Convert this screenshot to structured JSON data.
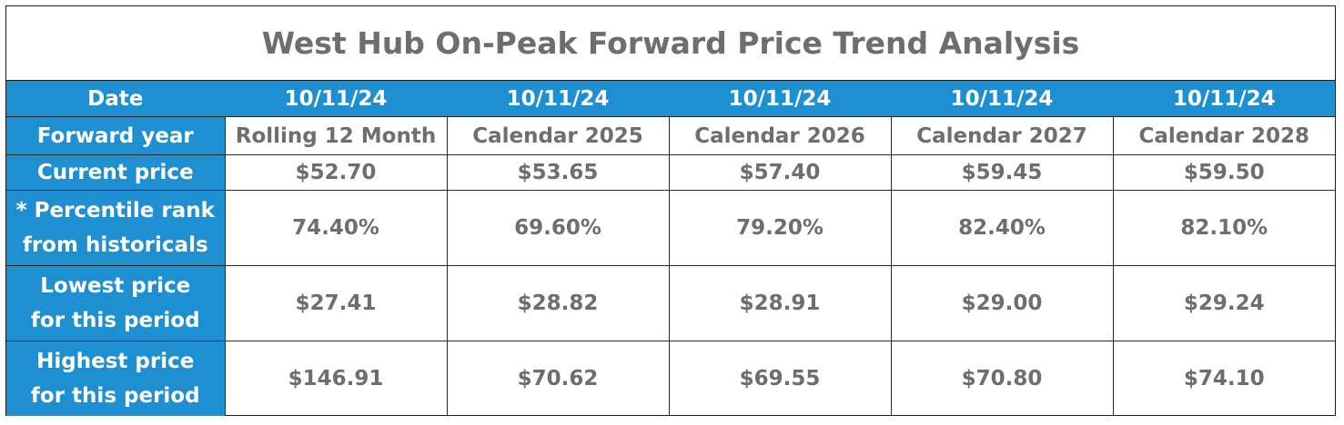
{
  "title": "West Hub On-Peak Forward Price Trend Analysis",
  "header": {
    "label": "Date",
    "columns": [
      "10/11/24",
      "10/11/24",
      "10/11/24",
      "10/11/24",
      "10/11/24"
    ]
  },
  "rows": [
    {
      "label_lines": [
        "Forward year"
      ],
      "values": [
        "Rolling 12 Month",
        "Calendar 2025",
        "Calendar 2026",
        "Calendar 2027",
        "Calendar 2028"
      ]
    },
    {
      "label_lines": [
        "Current price"
      ],
      "values": [
        "$52.70",
        "$53.65",
        "$57.40",
        "$59.45",
        "$59.50"
      ]
    },
    {
      "label_lines": [
        "* Percentile rank",
        "from historicals"
      ],
      "values": [
        "74.40%",
        "69.60%",
        "79.20%",
        "82.40%",
        "82.10%"
      ]
    },
    {
      "label_lines": [
        "Lowest price",
        "for this period"
      ],
      "values": [
        "$27.41",
        "$28.82",
        "$28.91",
        "$29.00",
        "$29.24"
      ]
    },
    {
      "label_lines": [
        "Highest price",
        "for this period"
      ],
      "values": [
        "$146.91",
        "$70.62",
        "$69.55",
        "$70.80",
        "$74.10"
      ]
    }
  ],
  "colors": {
    "header_blue": "#1e8fd0",
    "header_text": "#ffffff",
    "value_text": "#6e6e6e"
  }
}
